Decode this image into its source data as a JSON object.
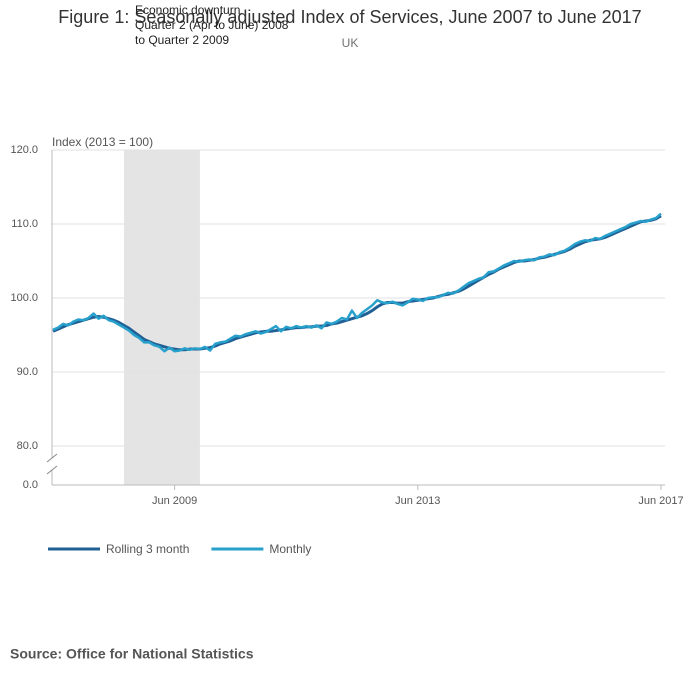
{
  "chart_data": {
    "type": "line",
    "title": "Figure 1: Seasonally adjusted Index of Services, June 2007 to June 2017",
    "subtitle": "UK",
    "y_label": "Index (2013 = 100)",
    "annotation": [
      "Economic downturn",
      "Quarter 2 (Apr to June) 2008",
      "to Quarter 2 2009"
    ],
    "shaded_period": [
      "2008-08",
      "2009-11"
    ],
    "source": "Source: Office for National Statistics",
    "x": [
      "2007-06",
      "2007-07",
      "2007-08",
      "2007-09",
      "2007-10",
      "2007-11",
      "2007-12",
      "2008-01",
      "2008-02",
      "2008-03",
      "2008-04",
      "2008-05",
      "2008-06",
      "2008-07",
      "2008-08",
      "2008-09",
      "2008-10",
      "2008-11",
      "2008-12",
      "2009-01",
      "2009-02",
      "2009-03",
      "2009-04",
      "2009-05",
      "2009-06",
      "2009-07",
      "2009-08",
      "2009-09",
      "2009-10",
      "2009-11",
      "2009-12",
      "2010-01",
      "2010-02",
      "2010-03",
      "2010-04",
      "2010-05",
      "2010-06",
      "2010-07",
      "2010-08",
      "2010-09",
      "2010-10",
      "2010-11",
      "2010-12",
      "2011-01",
      "2011-02",
      "2011-03",
      "2011-04",
      "2011-05",
      "2011-06",
      "2011-07",
      "2011-08",
      "2011-09",
      "2011-10",
      "2011-11",
      "2011-12",
      "2012-01",
      "2012-02",
      "2012-03",
      "2012-04",
      "2012-05",
      "2012-06",
      "2012-07",
      "2012-08",
      "2012-09",
      "2012-10",
      "2012-11",
      "2012-12",
      "2013-01",
      "2013-02",
      "2013-03",
      "2013-04",
      "2013-05",
      "2013-06",
      "2013-07",
      "2013-08",
      "2013-09",
      "2013-10",
      "2013-11",
      "2013-12",
      "2014-01",
      "2014-02",
      "2014-03",
      "2014-04",
      "2014-05",
      "2014-06",
      "2014-07",
      "2014-08",
      "2014-09",
      "2014-10",
      "2014-11",
      "2014-12",
      "2015-01",
      "2015-02",
      "2015-03",
      "2015-04",
      "2015-05",
      "2015-06",
      "2015-07",
      "2015-08",
      "2015-09",
      "2015-10",
      "2015-11",
      "2015-12",
      "2016-01",
      "2016-02",
      "2016-03",
      "2016-04",
      "2016-05",
      "2016-06",
      "2016-07",
      "2016-08",
      "2016-09",
      "2016-10",
      "2016-11",
      "2016-12",
      "2017-01",
      "2017-02",
      "2017-03",
      "2017-04",
      "2017-05",
      "2017-06"
    ],
    "series": [
      {
        "name": "Rolling 3 month",
        "color": "#206095",
        "values": [
          95.5,
          95.8,
          96.1,
          96.4,
          96.6,
          96.8,
          97.0,
          97.2,
          97.4,
          97.5,
          97.4,
          97.2,
          97.0,
          96.7,
          96.3,
          95.9,
          95.4,
          94.9,
          94.4,
          94.1,
          93.8,
          93.6,
          93.4,
          93.2,
          93.1,
          93.0,
          93.0,
          93.1,
          93.1,
          93.1,
          93.2,
          93.3,
          93.5,
          93.8,
          94.0,
          94.2,
          94.5,
          94.7,
          94.9,
          95.1,
          95.3,
          95.4,
          95.5,
          95.5,
          95.6,
          95.7,
          95.8,
          95.9,
          96.0,
          96.0,
          96.1,
          96.1,
          96.2,
          96.2,
          96.3,
          96.5,
          96.6,
          96.8,
          97.0,
          97.2,
          97.4,
          97.6,
          97.9,
          98.3,
          98.8,
          99.2,
          99.4,
          99.4,
          99.3,
          99.3,
          99.5,
          99.6,
          99.7,
          99.8,
          99.9,
          100.0,
          100.2,
          100.4,
          100.5,
          100.7,
          100.9,
          101.2,
          101.6,
          102.0,
          102.4,
          102.8,
          103.2,
          103.5,
          103.9,
          104.2,
          104.5,
          104.8,
          105.0,
          105.0,
          105.1,
          105.2,
          105.4,
          105.5,
          105.7,
          105.9,
          106.1,
          106.3,
          106.6,
          107.0,
          107.3,
          107.6,
          107.8,
          107.9,
          108.0,
          108.2,
          108.5,
          108.8,
          109.1,
          109.4,
          109.7,
          110.0,
          110.3,
          110.4,
          110.5,
          110.7,
          111.1
        ]
      },
      {
        "name": "Monthly",
        "color": "#27a0cc",
        "values": [
          95.7,
          96.0,
          96.5,
          96.3,
          96.8,
          97.1,
          97.0,
          97.3,
          97.9,
          97.2,
          97.6,
          97.0,
          96.8,
          96.4,
          96.0,
          95.6,
          95.0,
          94.6,
          94.0,
          94.0,
          93.6,
          93.4,
          92.8,
          93.3,
          92.8,
          92.9,
          93.2,
          93.0,
          93.2,
          93.1,
          93.4,
          92.9,
          93.8,
          94.0,
          94.1,
          94.5,
          94.9,
          94.8,
          95.1,
          95.3,
          95.5,
          95.2,
          95.4,
          95.8,
          96.2,
          95.5,
          96.1,
          95.9,
          96.2,
          96.0,
          96.2,
          96.0,
          96.3,
          95.9,
          96.7,
          96.5,
          96.8,
          97.3,
          97.1,
          98.3,
          97.3,
          98.0,
          98.5,
          99.0,
          99.7,
          99.4,
          99.3,
          99.5,
          99.2,
          99.0,
          99.4,
          99.9,
          99.8,
          99.6,
          100.0,
          100.1,
          100.1,
          100.4,
          100.7,
          100.6,
          101.0,
          101.5,
          102.0,
          102.3,
          102.6,
          102.8,
          103.5,
          103.6,
          104.0,
          104.4,
          104.7,
          105.0,
          104.9,
          105.1,
          105.2,
          105.1,
          105.5,
          105.6,
          105.9,
          105.8,
          106.2,
          106.4,
          106.8,
          107.3,
          107.6,
          107.8,
          107.7,
          108.1,
          108.0,
          108.4,
          108.7,
          109.0,
          109.3,
          109.6,
          110.0,
          110.2,
          110.4,
          110.3,
          110.6,
          110.8,
          111.4
        ]
      }
    ],
    "xticks": [
      {
        "value": "2009-06",
        "label": "Jun 2009"
      },
      {
        "value": "2013-06",
        "label": "Jun 2013"
      },
      {
        "value": "2017-06",
        "label": "Jun 2017"
      }
    ],
    "ylim": [
      80,
      120
    ],
    "yticks": [
      {
        "value": 0,
        "label": "0.0"
      },
      {
        "value": 80,
        "label": "80.0"
      },
      {
        "value": 90,
        "label": "90.0"
      },
      {
        "value": 100,
        "label": "100.0"
      },
      {
        "value": 110,
        "label": "110.0"
      },
      {
        "value": 120,
        "label": "120.0"
      }
    ],
    "axis_break": true,
    "grid": true,
    "legend": "bottom-left"
  }
}
